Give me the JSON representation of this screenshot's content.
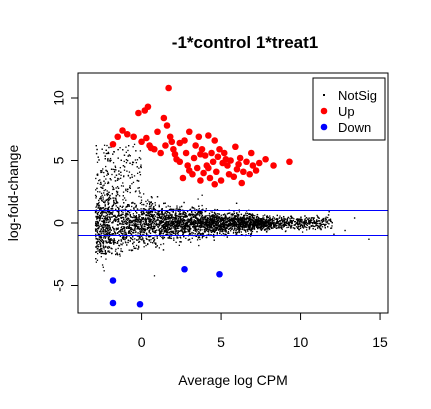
{
  "chart_data": {
    "type": "scatter",
    "title": "-1*control 1*treat1",
    "xlabel": "Average log CPM",
    "ylabel": "log-fold-change",
    "xlim": [
      -4,
      15.5
    ],
    "ylim": [
      -7.2,
      12
    ],
    "x_ticks": [
      0,
      5,
      10,
      15
    ],
    "y_ticks": [
      -5,
      0,
      5,
      10
    ],
    "x_tick_labels": [
      "0",
      "5",
      "10",
      "15"
    ],
    "y_tick_labels": [
      "-5",
      "0",
      "5",
      "10"
    ],
    "hlines": [
      1,
      -1
    ],
    "hline_color": "#0000ff",
    "legend": {
      "position": "top-right",
      "entries": [
        {
          "name": "NotSig",
          "color": "#000000"
        },
        {
          "name": "Up",
          "color": "#ff0000"
        },
        {
          "name": "Down",
          "color": "#0000ff"
        }
      ]
    },
    "series": [
      {
        "name": "Up",
        "color": "#ff0000",
        "points": [
          [
            1.7,
            10.8
          ],
          [
            0.4,
            9.3
          ],
          [
            0.2,
            9.0
          ],
          [
            -0.2,
            8.8
          ],
          [
            1.4,
            8.4
          ],
          [
            -1.2,
            7.4
          ],
          [
            -0.9,
            7.1
          ],
          [
            -1.5,
            6.9
          ],
          [
            -1.8,
            6.3
          ],
          [
            -0.5,
            6.9
          ],
          [
            0.0,
            6.5
          ],
          [
            0.3,
            6.8
          ],
          [
            0.5,
            6.2
          ],
          [
            1.0,
            7.3
          ],
          [
            1.6,
            7.8
          ],
          [
            1.8,
            6.9
          ],
          [
            2.4,
            6.4
          ],
          [
            2.0,
            5.9
          ],
          [
            3.0,
            7.3
          ],
          [
            3.6,
            6.9
          ],
          [
            4.2,
            7.0
          ],
          [
            4.6,
            6.6
          ],
          [
            2.8,
            5.6
          ],
          [
            3.3,
            5.2
          ],
          [
            3.8,
            5.9
          ],
          [
            4.0,
            5.4
          ],
          [
            4.4,
            5.6
          ],
          [
            4.8,
            5.3
          ],
          [
            5.2,
            5.6
          ],
          [
            5.6,
            5.0
          ],
          [
            6.2,
            5.2
          ],
          [
            6.6,
            4.9
          ],
          [
            7.0,
            4.6
          ],
          [
            7.4,
            4.8
          ],
          [
            2.4,
            4.9
          ],
          [
            2.9,
            4.6
          ],
          [
            3.5,
            4.4
          ],
          [
            4.1,
            4.6
          ],
          [
            4.7,
            4.1
          ],
          [
            5.4,
            4.6
          ],
          [
            6.0,
            4.3
          ],
          [
            6.4,
            4.1
          ],
          [
            6.8,
            3.9
          ],
          [
            2.6,
            3.6
          ],
          [
            3.2,
            3.9
          ],
          [
            3.7,
            3.4
          ],
          [
            4.3,
            3.6
          ],
          [
            5.0,
            3.4
          ],
          [
            5.8,
            3.7
          ],
          [
            6.3,
            3.2
          ],
          [
            4.5,
            4.9
          ],
          [
            5.1,
            4.8
          ],
          [
            3.9,
            4.0
          ],
          [
            2.2,
            5.1
          ],
          [
            1.2,
            5.6
          ],
          [
            0.8,
            5.9
          ],
          [
            7.8,
            5.1
          ],
          [
            8.3,
            4.6
          ],
          [
            9.3,
            4.9
          ],
          [
            5.9,
            6.1
          ],
          [
            4.9,
            5.9
          ],
          [
            3.4,
            6.2
          ],
          [
            2.7,
            6.6
          ],
          [
            1.5,
            6.2
          ],
          [
            6.9,
            5.6
          ],
          [
            5.5,
            3.9
          ],
          [
            4.6,
            3.1
          ],
          [
            3.0,
            4.2
          ],
          [
            7.2,
            4.2
          ],
          [
            3.7,
            5.5
          ],
          [
            4.2,
            4.4
          ],
          [
            5.3,
            5.1
          ],
          [
            6.1,
            4.7
          ],
          [
            2.1,
            5.5
          ],
          [
            1.9,
            6.5
          ],
          [
            0.6,
            6.0
          ]
        ]
      },
      {
        "name": "Down",
        "color": "#0000ff",
        "points": [
          [
            -1.8,
            -4.6
          ],
          [
            -1.8,
            -6.4
          ],
          [
            -0.1,
            -6.5
          ],
          [
            2.7,
            -3.7
          ],
          [
            4.9,
            -4.1
          ]
        ]
      },
      {
        "name": "NotSig",
        "color": "#000000",
        "generator": "dense_ma_cloud",
        "extra_points": [
          [
            12.8,
            -0.6
          ],
          [
            14.3,
            -1.3
          ],
          [
            13.4,
            0.4
          ],
          [
            11.8,
            0.9
          ],
          [
            12.1,
            -0.9
          ]
        ]
      }
    ]
  }
}
